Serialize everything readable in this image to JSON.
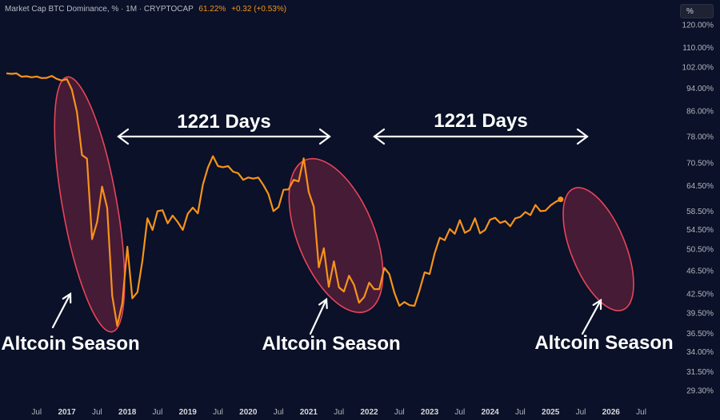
{
  "header": {
    "symbol": "Market Cap BTC Dominance, % · 1M · CRYPTOCAP",
    "price": "61.22%",
    "change": "+0.32 (+0.53%)"
  },
  "scale_button": {
    "label": "%"
  },
  "colors": {
    "background": "#0a1128",
    "line": "#f7931a",
    "highlight_stroke": "#e8445a",
    "highlight_fill": "#5a1f3a",
    "annotation": "#ffffff"
  },
  "chart_data": {
    "type": "line",
    "title": "Market Cap BTC Dominance, %",
    "xlabel": "",
    "ylabel": "%",
    "xlim": [
      2016.0,
      2026.85
    ],
    "ylim": [
      29.3,
      120.0
    ],
    "y_scale": "log",
    "y_ticks": [
      120.0,
      110.0,
      102.0,
      94.0,
      86.0,
      78.0,
      70.5,
      64.5,
      58.5,
      54.5,
      50.5,
      46.5,
      42.5,
      39.5,
      36.5,
      34.0,
      31.5,
      29.3
    ],
    "y_tick_labels": [
      "120.00%",
      "110.00%",
      "102.00%",
      "94.00%",
      "86.00%",
      "78.00%",
      "70.50%",
      "64.50%",
      "58.50%",
      "54.50%",
      "50.50%",
      "46.50%",
      "42.50%",
      "39.50%",
      "36.50%",
      "34.00%",
      "31.50%",
      "29.30%"
    ],
    "x_ticks": [
      {
        "t": 2016.5,
        "label": "Jul",
        "year": false
      },
      {
        "t": 2017.0,
        "label": "2017",
        "year": true
      },
      {
        "t": 2017.5,
        "label": "Jul",
        "year": false
      },
      {
        "t": 2018.0,
        "label": "2018",
        "year": true
      },
      {
        "t": 2018.5,
        "label": "Jul",
        "year": false
      },
      {
        "t": 2019.0,
        "label": "2019",
        "year": true
      },
      {
        "t": 2019.5,
        "label": "Jul",
        "year": false
      },
      {
        "t": 2020.0,
        "label": "2020",
        "year": true
      },
      {
        "t": 2020.5,
        "label": "Jul",
        "year": false
      },
      {
        "t": 2021.0,
        "label": "2021",
        "year": true
      },
      {
        "t": 2021.5,
        "label": "Jul",
        "year": false
      },
      {
        "t": 2022.0,
        "label": "2022",
        "year": true
      },
      {
        "t": 2022.5,
        "label": "Jul",
        "year": false
      },
      {
        "t": 2023.0,
        "label": "2023",
        "year": true
      },
      {
        "t": 2023.5,
        "label": "Jul",
        "year": false
      },
      {
        "t": 2024.0,
        "label": "2024",
        "year": true
      },
      {
        "t": 2024.5,
        "label": "Jul",
        "year": false
      },
      {
        "t": 2025.0,
        "label": "2025",
        "year": true
      },
      {
        "t": 2025.5,
        "label": "Jul",
        "year": false
      },
      {
        "t": 2026.0,
        "label": "2026",
        "year": true
      },
      {
        "t": 2026.5,
        "label": "Jul",
        "year": false
      }
    ],
    "series": [
      {
        "name": "BTC Dominance",
        "x": [
          2016.0,
          2016.083,
          2016.167,
          2016.25,
          2016.333,
          2016.417,
          2016.5,
          2016.583,
          2016.667,
          2016.75,
          2016.833,
          2016.917,
          2017.0,
          2017.083,
          2017.167,
          2017.25,
          2017.333,
          2017.417,
          2017.5,
          2017.583,
          2017.667,
          2017.75,
          2017.833,
          2017.917,
          2018.0,
          2018.083,
          2018.167,
          2018.25,
          2018.333,
          2018.417,
          2018.5,
          2018.583,
          2018.667,
          2018.75,
          2018.833,
          2018.917,
          2019.0,
          2019.083,
          2019.167,
          2019.25,
          2019.333,
          2019.417,
          2019.5,
          2019.583,
          2019.667,
          2019.75,
          2019.833,
          2019.917,
          2020.0,
          2020.083,
          2020.167,
          2020.25,
          2020.333,
          2020.417,
          2020.5,
          2020.583,
          2020.667,
          2020.75,
          2020.833,
          2020.917,
          2021.0,
          2021.083,
          2021.167,
          2021.25,
          2021.333,
          2021.417,
          2021.5,
          2021.583,
          2021.667,
          2021.75,
          2021.833,
          2021.917,
          2022.0,
          2022.083,
          2022.167,
          2022.25,
          2022.333,
          2022.417,
          2022.5,
          2022.583,
          2022.667,
          2022.75,
          2022.833,
          2022.917,
          2023.0,
          2023.083,
          2023.167,
          2023.25,
          2023.333,
          2023.417,
          2023.5,
          2023.583,
          2023.667,
          2023.75,
          2023.833,
          2023.917,
          2024.0,
          2024.083,
          2024.167,
          2024.25,
          2024.333,
          2024.417,
          2024.5,
          2024.583,
          2024.667,
          2024.75,
          2024.833,
          2024.917,
          2025.0,
          2025.083,
          2025.167
        ],
        "values": [
          99.5,
          99.3,
          99.5,
          98.2,
          98.4,
          98.0,
          98.3,
          97.7,
          97.8,
          98.5,
          97.4,
          96.8,
          97.3,
          93.5,
          85.7,
          72.6,
          71.6,
          52.5,
          56.1,
          64.3,
          59.2,
          42.2,
          37.6,
          41.0,
          51.0,
          41.8,
          42.8,
          48.3,
          56.9,
          54.4,
          58.5,
          58.7,
          55.8,
          57.5,
          56.1,
          54.4,
          57.9,
          59.3,
          58.0,
          64.8,
          69.2,
          72.3,
          69.6,
          69.3,
          69.6,
          68.1,
          67.7,
          66.0,
          66.6,
          66.3,
          66.6,
          64.7,
          62.5,
          58.5,
          59.4,
          63.5,
          63.6,
          66.0,
          65.6,
          71.7,
          63.0,
          59.5,
          47.1,
          50.7,
          43.7,
          48.2,
          43.6,
          42.9,
          45.6,
          44.0,
          41.1,
          42.0,
          44.4,
          43.3,
          43.3,
          47.0,
          45.9,
          42.7,
          40.6,
          41.2,
          40.7,
          40.6,
          43.1,
          46.2,
          45.9,
          49.7,
          52.8,
          52.3,
          54.6,
          53.6,
          56.5,
          53.8,
          54.4,
          56.9,
          53.7,
          54.4,
          56.6,
          57.0,
          55.9,
          56.3,
          55.2,
          56.9,
          57.2,
          58.3,
          57.6,
          59.9,
          58.5,
          58.6,
          59.8,
          60.6,
          61.22
        ]
      }
    ],
    "highlights": [
      {
        "label": "Altcoin Season",
        "t_start": 2016.75,
        "t_end": 2018.2
      },
      {
        "label": "Altcoin Season",
        "t_start": 2020.75,
        "t_end": 2022.15
      },
      {
        "label": "Altcoin Season",
        "t_start": 2025.0,
        "t_end": 2026.05
      }
    ],
    "annotations": [
      {
        "text": "1221 Days",
        "from": "2017 Dec",
        "to": "2021 Apr"
      },
      {
        "text": "1221 Days",
        "from": "2022 Jan",
        "to": "2025 May"
      }
    ],
    "season_labels": [
      "Altcoin Season",
      "Altcoin Season",
      "Altcoin Season"
    ]
  }
}
